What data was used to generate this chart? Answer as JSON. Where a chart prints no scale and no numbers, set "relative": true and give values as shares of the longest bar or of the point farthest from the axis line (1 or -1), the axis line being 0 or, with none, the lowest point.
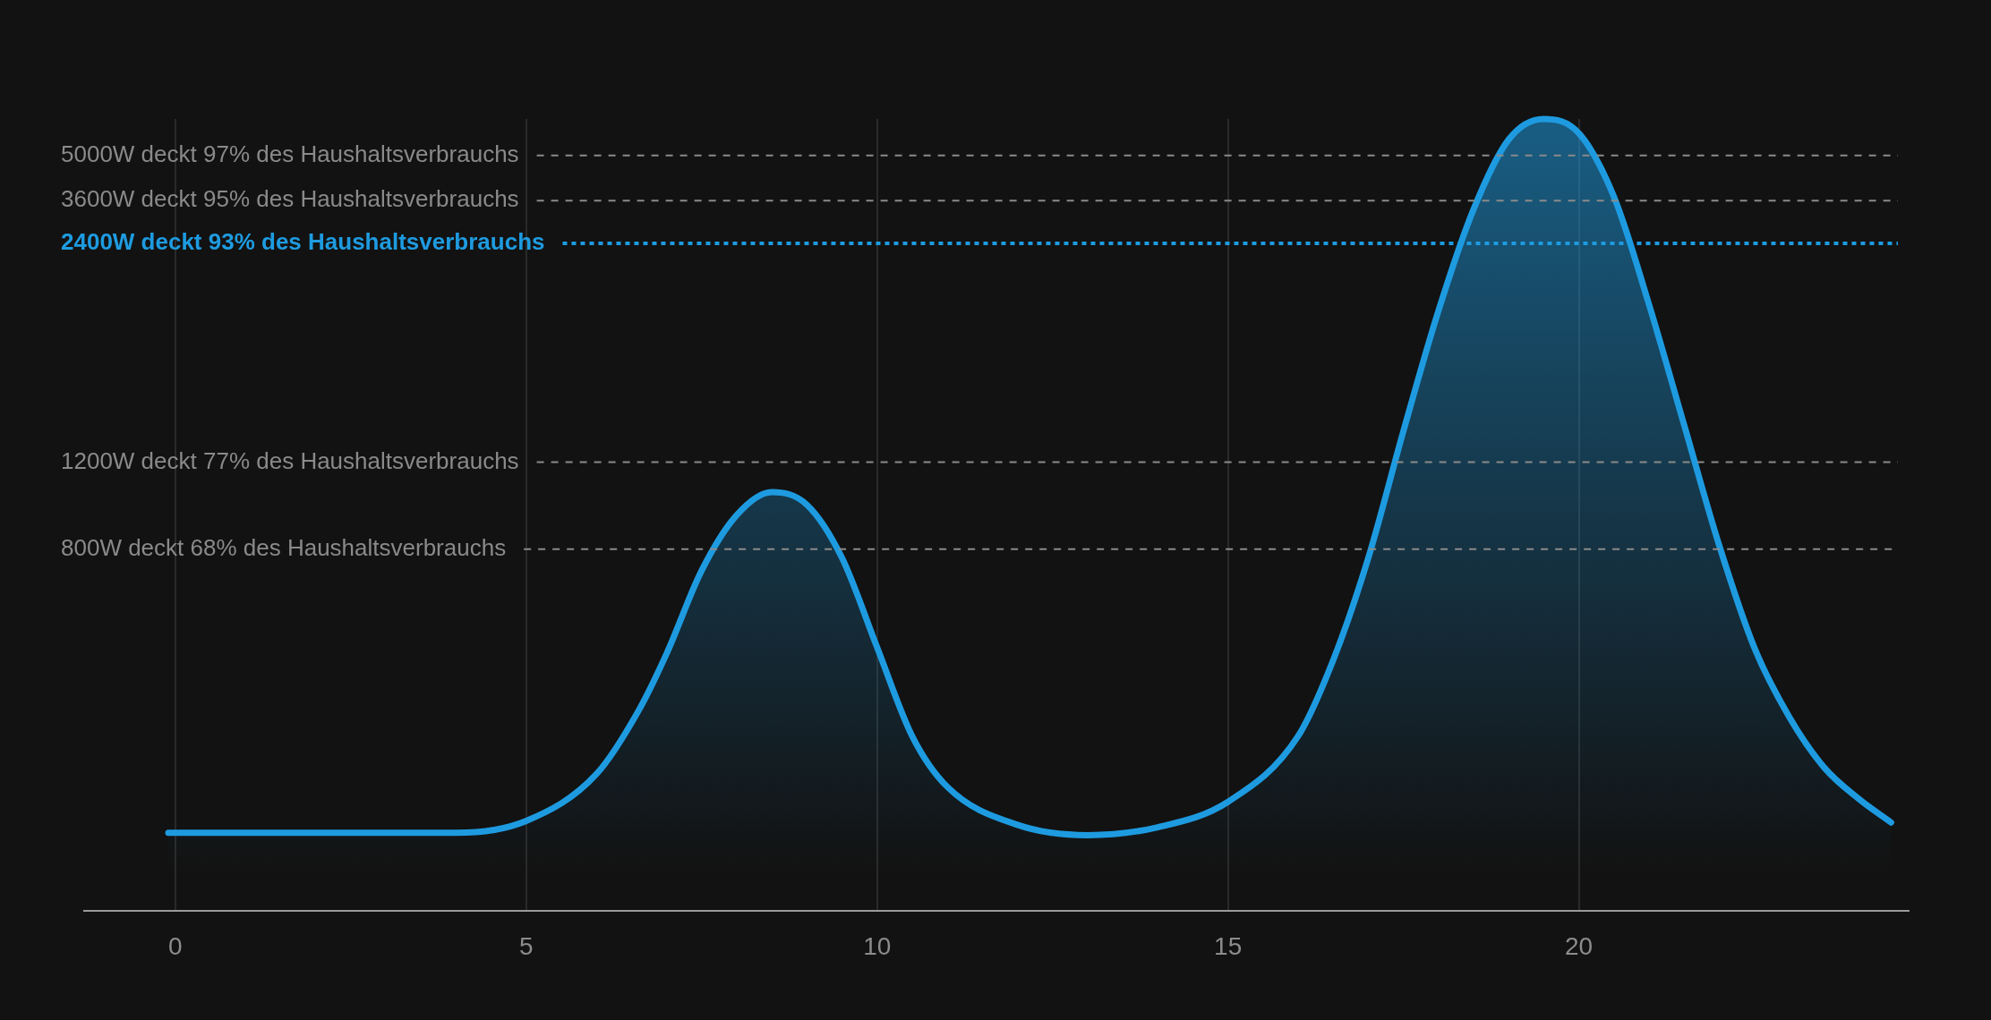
{
  "chart_data": {
    "type": "area",
    "relative": true,
    "x": [
      -0.1,
      4,
      5,
      6,
      6.6,
      7,
      7.5,
      8,
      8.5,
      9,
      9.5,
      10,
      10.5,
      11,
      12,
      13,
      14,
      15,
      16,
      16.5,
      17,
      17.5,
      18,
      18.5,
      19,
      19.5,
      20,
      20.5,
      21,
      21.5,
      22,
      22.5,
      23,
      23.5,
      24,
      24.45
    ],
    "series": [
      {
        "color": "#1e9be0",
        "values": [
          0.099,
          0.099,
          0.114,
          0.173,
          0.253,
          0.325,
          0.43,
          0.5,
          0.529,
          0.513,
          0.446,
          0.333,
          0.221,
          0.157,
          0.109,
          0.096,
          0.106,
          0.138,
          0.221,
          0.317,
          0.446,
          0.606,
          0.758,
          0.886,
          0.974,
          1.0,
          0.982,
          0.902,
          0.766,
          0.614,
          0.462,
          0.333,
          0.245,
          0.181,
          0.141,
          0.112
        ]
      }
    ],
    "xlim": [
      -1.3,
      24.7
    ],
    "xticks": [
      0,
      5,
      10,
      15,
      20
    ],
    "grid": "x",
    "legend": false,
    "marker": "none",
    "ref_lines": [
      {
        "axis": "y",
        "value": 0.954,
        "label": "5000W deckt 97% des Haushaltsverbrauchs",
        "color": "#8a8a8a",
        "line_style": "dashed"
      },
      {
        "axis": "y",
        "value": 0.897,
        "label": "3600W deckt 95% des Haushaltsverbrauchs",
        "color": "#8a8a8a",
        "line_style": "dashed"
      },
      {
        "axis": "y",
        "value": 0.843,
        "label": "2400W deckt 93% des Haushaltsverbrauchs",
        "color": "#1e9be0",
        "line_style": "dotted"
      },
      {
        "axis": "y",
        "value": 0.567,
        "label": "1200W deckt 77% des Haushaltsverbrauchs",
        "color": "#8a8a8a",
        "line_style": "dashed"
      },
      {
        "axis": "y",
        "value": 0.457,
        "label": "800W deckt 68% des Haushaltsverbrauchs",
        "color": "#8a8a8a",
        "line_style": "dashed"
      }
    ]
  }
}
